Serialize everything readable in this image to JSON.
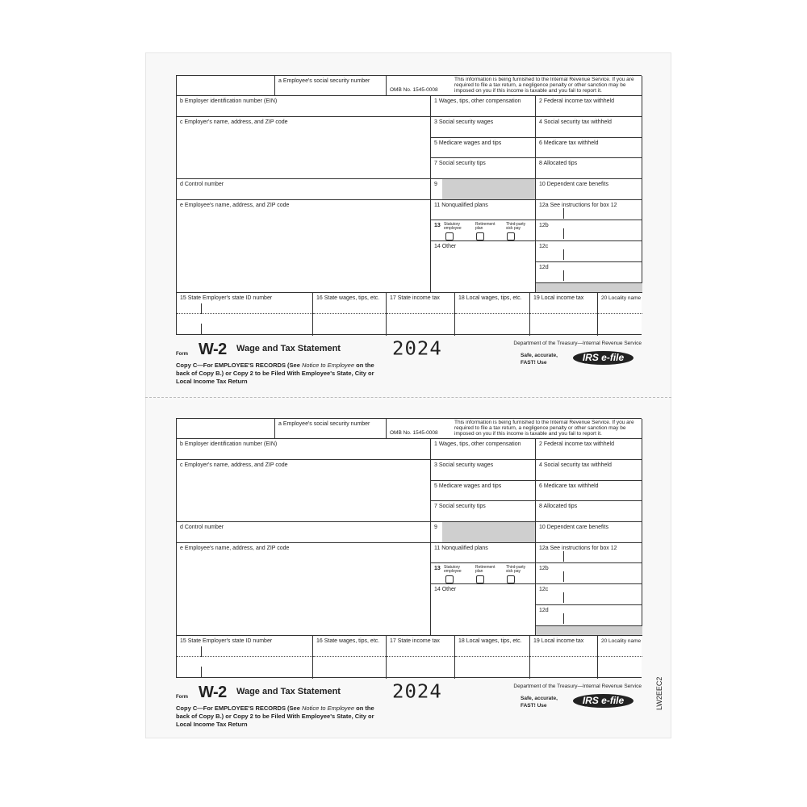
{
  "form": {
    "a": "a  Employee's social security number",
    "omb": "OMB No. 1545-0008",
    "notice": "This information is being furnished to the Internal Revenue Service. If you are required to file a tax return, a negligence penalty or other sanction may be imposed on you if this income is taxable and you fail to report it.",
    "b": "b  Employer identification number (EIN)",
    "c": "c  Employer's name, address, and ZIP code",
    "d": "d  Control number",
    "e": "e  Employee's name, address, and ZIP code",
    "box1": "1   Wages, tips, other compensation",
    "box2": "2   Federal income tax withheld",
    "box3": "3   Social security wages",
    "box4": "4   Social security tax withheld",
    "box5": "5   Medicare wages and tips",
    "box6": "6   Medicare tax withheld",
    "box7": "7   Social security tips",
    "box8": "8   Allocated tips",
    "box9": "9",
    "box10": "10   Dependent care benefits",
    "box11": "11   Nonqualified plans",
    "box12a": "12a  See instructions for box 12",
    "box12b": "12b",
    "box12c": "12c",
    "box12d": "12d",
    "box13": "13",
    "box13_statutory": "Statutory employee",
    "box13_retirement": "Retirement plan",
    "box13_thirdparty": "Third-party sick pay",
    "box14": "14  Other",
    "box15": "15 State    Employer's state ID number",
    "box16": "16  State wages, tips, etc.",
    "box17": "17  State income tax",
    "box18": "18  Local wages, tips, etc.",
    "box19": "19  Local income tax",
    "box20": "20  Locality name",
    "form_word": "Form",
    "form_name": "W-2",
    "form_title": "Wage and Tax Statement",
    "year": "2024",
    "copy_line1": "Copy C—For EMPLOYEE'S RECORDS (See ",
    "copy_notice": "Notice to Employee",
    "copy_line2": " on the back of Copy B.) or Copy 2 to be Filed With Employee's State, City or Local Income Tax Return",
    "dept": "Department of the Treasury—Internal Revenue Service",
    "safe": "Safe, accurate, FAST!  Use",
    "efile": "IRS e-file"
  },
  "product_code": "LW2EEC2"
}
